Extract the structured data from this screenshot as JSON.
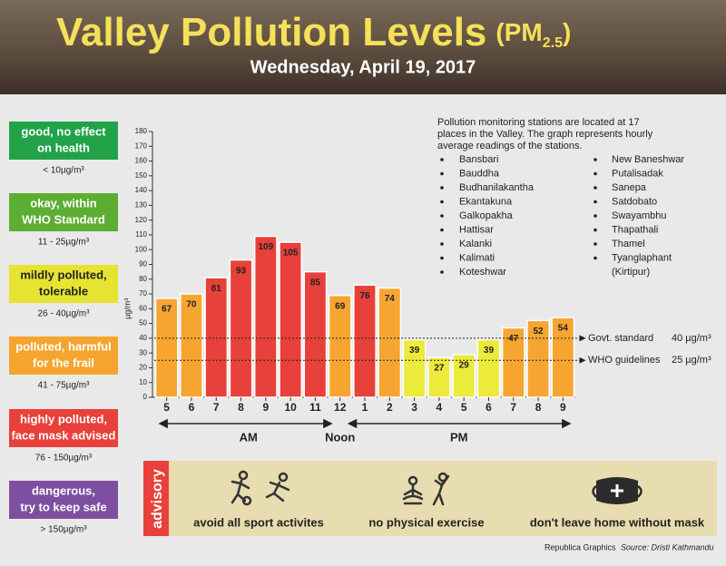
{
  "header": {
    "title": "Valley Pollution Levels",
    "unit_prefix": "(PM",
    "unit_sub": "2.5",
    "unit_suffix": ")",
    "date": "Wednesday, April 19, 2017"
  },
  "legend": [
    {
      "lines": [
        "good, no effect",
        "on health"
      ],
      "range": "< 10µg/m³",
      "color": "#22a34a"
    },
    {
      "lines": [
        "okay, within",
        "WHO Standard"
      ],
      "range": "11 - 25µg/m³",
      "color": "#5cae32"
    },
    {
      "lines": [
        "mildly polluted,",
        "tolerable"
      ],
      "range": "26 - 40µg/m³",
      "color": "#e6e431"
    },
    {
      "lines": [
        "polluted, harmful",
        "for the frail"
      ],
      "range": "41 - 75µg/m³",
      "color": "#f5a52e"
    },
    {
      "lines": [
        "highly polluted,",
        "face mask advised"
      ],
      "range": "76 - 150µg/m³",
      "color": "#e8403a"
    },
    {
      "lines": [
        "dangerous,",
        "try to keep safe"
      ],
      "range": "> 150µg/m³",
      "color": "#7e4fa0"
    }
  ],
  "chart_data": {
    "type": "bar",
    "categories": [
      "5",
      "6",
      "7",
      "8",
      "9",
      "10",
      "11",
      "12",
      "1",
      "2",
      "3",
      "4",
      "5",
      "6",
      "7",
      "8",
      "9"
    ],
    "values": [
      67,
      70,
      81,
      93,
      109,
      105,
      85,
      69,
      76,
      74,
      39,
      27,
      29,
      39,
      47,
      52,
      54
    ],
    "colors": [
      "#f7a531",
      "#f7a531",
      "#e8403a",
      "#e8403a",
      "#e8403a",
      "#e8403a",
      "#e8403a",
      "#f7a531",
      "#e8403a",
      "#f7a531",
      "#ecea3a",
      "#ecea3a",
      "#ecea3a",
      "#ecea3a",
      "#f7a531",
      "#f7a531",
      "#f7a531"
    ],
    "ylim": [
      0,
      180
    ],
    "yticks": [
      0,
      10,
      20,
      30,
      40,
      50,
      60,
      70,
      80,
      90,
      100,
      110,
      120,
      130,
      140,
      150,
      160,
      170,
      180
    ],
    "y_label": "µg/m³",
    "reference_lines": [
      {
        "value": 40,
        "label": "Govt. standard",
        "value_label": "40 µg/m³"
      },
      {
        "value": 25,
        "label": "WHO guidelines",
        "value_label": "25 µg/m³"
      }
    ],
    "periods": [
      "AM",
      "Noon",
      "PM"
    ]
  },
  "notes": {
    "lines": [
      "Pollution monitoring stations are located at 17",
      "places in the Valley. The graph represents hourly",
      "average readings of the stations."
    ],
    "stations_left": [
      "Bansbari",
      "Bauddha",
      "Budhanilakantha",
      "Ekantakuna",
      "Galkopakha",
      "Hattisar",
      "Kalanki",
      "Kalimati",
      "Koteshwar"
    ],
    "stations_right": [
      "New Baneshwar",
      "Putalisadak",
      "Sanepa",
      "Satdobato",
      "Swayambhu",
      "Thapathali",
      "Thamel",
      "Tyanglaphant"
    ],
    "stations_right_continuation": "(Kirtipur)"
  },
  "advisory": {
    "tab": "advisory",
    "items": [
      "avoid all sport activites",
      "no physical exercise",
      "don't leave home without mask"
    ]
  },
  "footer": {
    "credit": "Republica Graphics",
    "source": "Source: Dristi Kathmandu"
  }
}
